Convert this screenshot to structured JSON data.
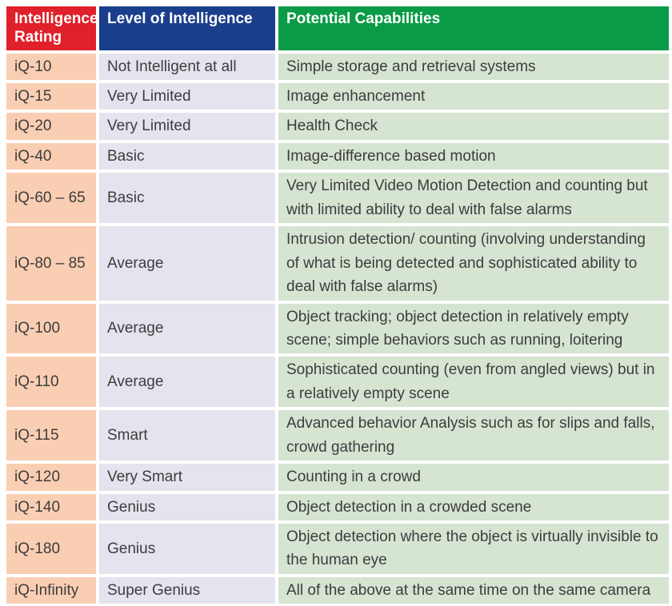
{
  "colors": {
    "header_red": "#e0202a",
    "header_blue": "#1b3e8c",
    "header_green": "#0a9b46",
    "cell_peach": "#f9ceb3",
    "cell_lavender": "#e4e4ef",
    "cell_light_green": "#d6e4d2",
    "header_text": "#ffffff",
    "body_text": "#3d3d3d"
  },
  "table": {
    "headers": [
      {
        "label": "Intelligence Rating"
      },
      {
        "label": "Level of Intelligence"
      },
      {
        "label": "Potential Capabilities"
      }
    ],
    "rows": [
      {
        "rating": "iQ-10",
        "level": "Not Intelligent at all",
        "capabilities": "Simple storage and retrieval systems"
      },
      {
        "rating": "iQ-15",
        "level": "Very Limited",
        "capabilities": "Image enhancement"
      },
      {
        "rating": "iQ-20",
        "level": "Very Limited",
        "capabilities": "Health Check"
      },
      {
        "rating": "iQ-40",
        "level": "Basic",
        "capabilities": "Image-difference based motion"
      },
      {
        "rating": "iQ-60 – 65",
        "level": "Basic",
        "capabilities": "Very Limited Video Motion Detection and counting but with limited ability to deal with false alarms"
      },
      {
        "rating": "iQ-80 – 85",
        "level": "Average",
        "capabilities": "Intrusion detection/ counting (involving understanding of what is being detected and sophisticated ability to deal with false alarms)"
      },
      {
        "rating": "iQ-100",
        "level": "Average",
        "capabilities": "Object tracking; object detection in relatively empty scene; simple behaviors such as running, loitering"
      },
      {
        "rating": "iQ-110",
        "level": "Average",
        "capabilities": "Sophisticated counting (even from angled views) but in a relatively empty scene"
      },
      {
        "rating": "iQ-115",
        "level": "Smart",
        "capabilities": "Advanced behavior Analysis such as for slips and falls, crowd gathering"
      },
      {
        "rating": "iQ-120",
        "level": "Very Smart",
        "capabilities": "Counting in a crowd"
      },
      {
        "rating": "iQ-140",
        "level": "Genius",
        "capabilities": "Object detection in a crowded scene"
      },
      {
        "rating": "iQ-180",
        "level": "Genius",
        "capabilities": "Object detection where the object is virtually invisible to the human eye"
      },
      {
        "rating": "iQ-Infinity",
        "level": "Super Genius",
        "capabilities": "All of the above at the same time on the same camera"
      }
    ]
  }
}
